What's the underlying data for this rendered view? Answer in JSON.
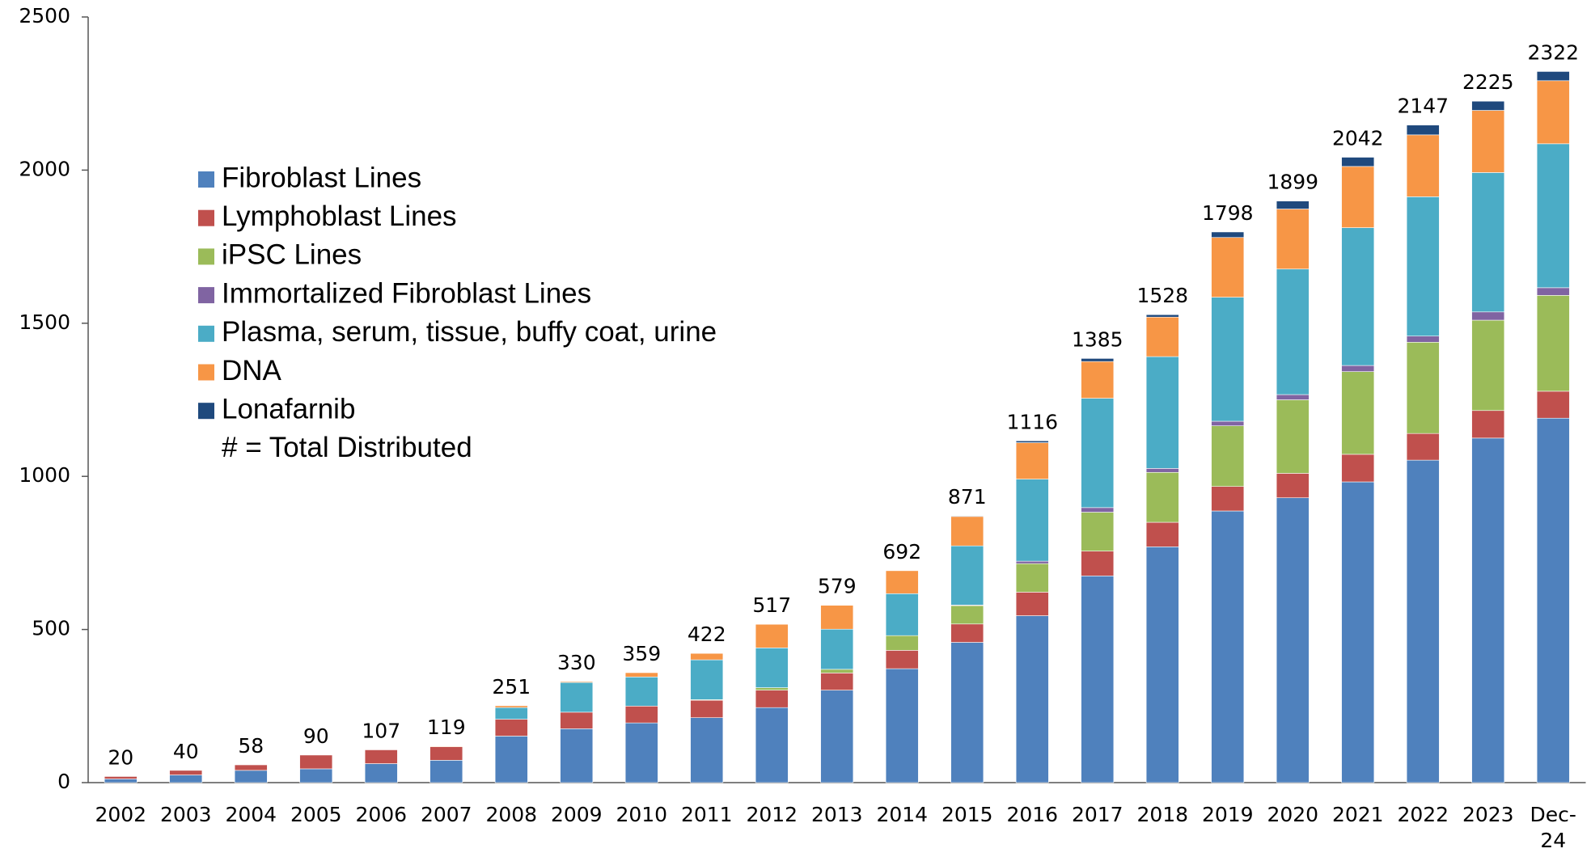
{
  "chart_data": {
    "type": "stacked_bar",
    "categories": [
      "2002",
      "2003",
      "2004",
      "2005",
      "2006",
      "2007",
      "2008",
      "2009",
      "2010",
      "2011",
      "2012",
      "2013",
      "2014",
      "2015",
      "2016",
      "2017",
      "2018",
      "2019",
      "2020",
      "2021",
      "2022",
      "2023",
      "Dec-24"
    ],
    "series": [
      {
        "name": "Fibroblast Lines",
        "color": "#4f81bd",
        "values": [
          12,
          25,
          40,
          45,
          62,
          73,
          152,
          176,
          195,
          212,
          245,
          302,
          372,
          458,
          545,
          675,
          770,
          887,
          930,
          982,
          1053,
          1125,
          1190
        ]
      },
      {
        "name": "Lymphoblast Lines",
        "color": "#c0504d",
        "values": [
          8,
          15,
          18,
          45,
          45,
          44,
          55,
          54,
          55,
          57,
          57,
          56,
          60,
          60,
          77,
          81,
          80,
          80,
          80,
          90,
          87,
          90,
          88
        ]
      },
      {
        "name": "iPSC Lines",
        "color": "#9bbb59",
        "values": [
          0,
          0,
          0,
          0,
          0,
          0,
          0,
          0,
          0,
          2,
          8,
          12,
          48,
          60,
          93,
          127,
          163,
          198,
          240,
          270,
          298,
          295,
          313
        ]
      },
      {
        "name": "Immortalized Fibroblast Lines",
        "color": "#8064a2",
        "values": [
          0,
          0,
          0,
          0,
          0,
          0,
          0,
          0,
          0,
          0,
          0,
          0,
          0,
          2,
          8,
          15,
          13,
          15,
          17,
          20,
          20,
          27,
          25
        ]
      },
      {
        "name": "Plasma, serum, tissue, buffy coat, urine",
        "color": "#4bacc6",
        "values": [
          0,
          0,
          0,
          0,
          0,
          0,
          38,
          97,
          95,
          130,
          130,
          131,
          137,
          193,
          268,
          357,
          365,
          405,
          410,
          450,
          455,
          455,
          470
        ]
      },
      {
        "name": "DNA",
        "color": "#f79646",
        "values": [
          0,
          0,
          0,
          0,
          0,
          2,
          6,
          3,
          14,
          21,
          77,
          78,
          75,
          96,
          119,
          120,
          129,
          195,
          196,
          200,
          202,
          203,
          206
        ]
      },
      {
        "name": "Lonafarnib",
        "color": "#1f497d",
        "values": [
          0,
          0,
          0,
          0,
          0,
          0,
          0,
          0,
          0,
          0,
          0,
          0,
          0,
          2,
          6,
          10,
          8,
          18,
          26,
          30,
          32,
          30,
          30
        ]
      }
    ],
    "totals": [
      20,
      40,
      58,
      90,
      107,
      119,
      251,
      330,
      359,
      422,
      517,
      579,
      692,
      871,
      1116,
      1385,
      1528,
      1798,
      1899,
      2042,
      2147,
      2225,
      2322
    ],
    "total_label": "# = Total Distributed",
    "ylim": [
      0,
      2500
    ],
    "yticks": [
      0,
      500,
      1000,
      1500,
      2000,
      2500
    ],
    "grid": false,
    "legend": "upper-left"
  }
}
